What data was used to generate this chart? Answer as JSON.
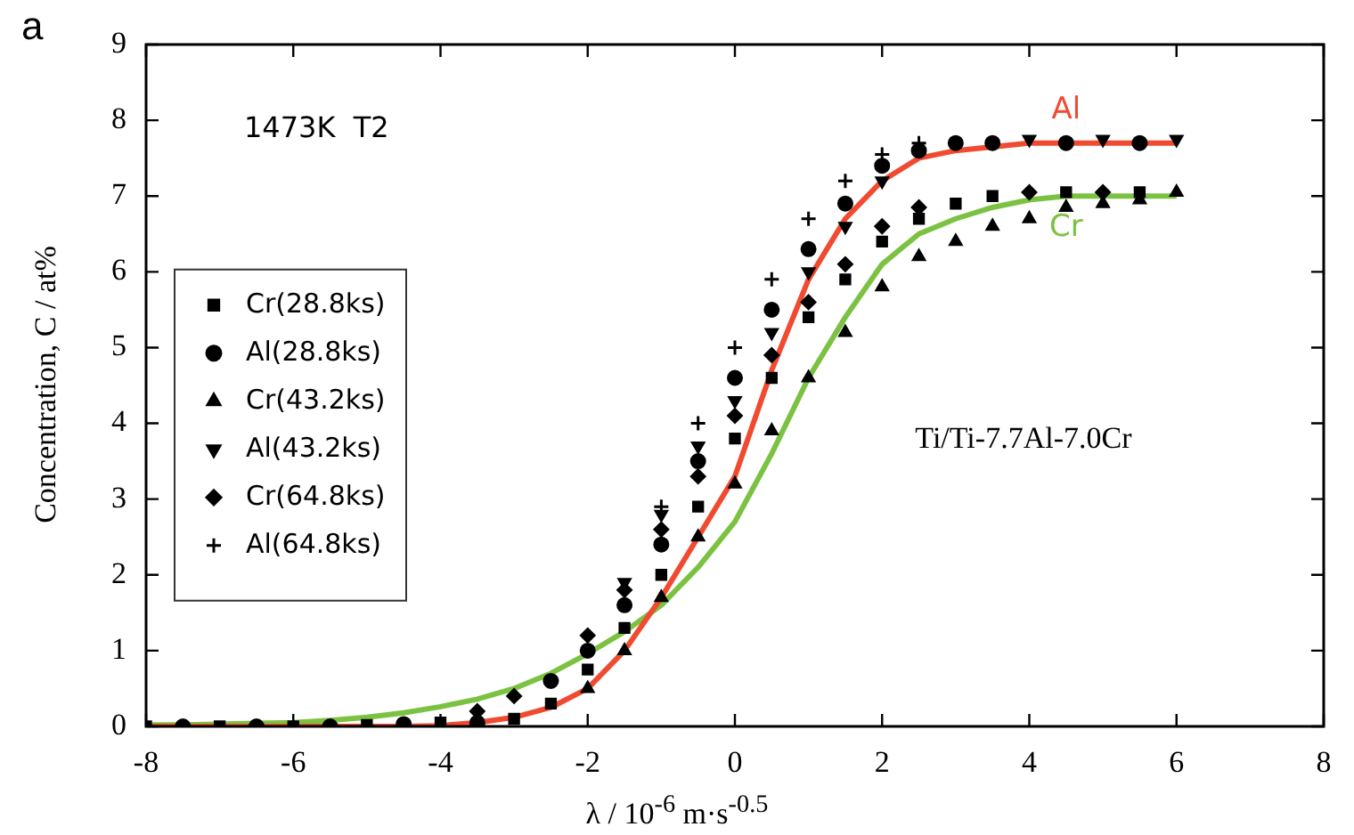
{
  "chart_data": {
    "type": "scatter",
    "title": "a",
    "xlabel": "λ / 10$^{-6}$ m·s$^{-0.5}$",
    "ylabel": "Concentration, C / at%",
    "xlim": [
      -8,
      8
    ],
    "xticks": [
      -8,
      -6,
      -4,
      -2,
      0,
      2,
      4,
      6,
      8
    ],
    "ylim": [
      0,
      9
    ],
    "yticks": [
      0,
      1,
      2,
      3,
      4,
      5,
      6,
      7,
      8,
      9
    ],
    "grid": false,
    "legend": "left",
    "annotations": [
      "1473K  T2",
      "Ti/Ti-7.7Al-7.0Cr"
    ],
    "x": [
      -8,
      -7.5,
      -7,
      -6.5,
      -6,
      -5.5,
      -5,
      -4.5,
      -4,
      -3.5,
      -3,
      -2.5,
      -2,
      -1.5,
      -1,
      -0.5,
      0,
      0.5,
      1,
      1.5,
      2,
      2.5,
      3,
      3.5,
      4,
      4.5,
      5,
      5.5,
      6
    ],
    "series": [
      {
        "name": "Cr(28.8ks)",
        "color": "#000000",
        "marker": "square",
        "values": [
          0,
          null,
          0,
          null,
          0,
          null,
          0.02,
          null,
          0.05,
          null,
          0.1,
          0.3,
          0.75,
          1.3,
          2.0,
          2.9,
          3.8,
          4.6,
          5.4,
          5.9,
          6.4,
          6.7,
          6.9,
          7.0,
          null,
          7.05,
          null,
          7.05,
          null
        ]
      },
      {
        "name": "Al(28.8ks)",
        "color": "#000000",
        "marker": "circle",
        "values": [
          null,
          0,
          null,
          0,
          null,
          0,
          null,
          0.03,
          null,
          0.05,
          null,
          0.6,
          1.0,
          1.6,
          2.4,
          3.5,
          4.6,
          5.5,
          6.3,
          6.9,
          7.4,
          7.6,
          7.7,
          7.7,
          null,
          7.7,
          null,
          7.7,
          null
        ]
      },
      {
        "name": "Cr(43.2ks)",
        "color": "#000000",
        "marker": "triangle",
        "values": [
          null,
          null,
          null,
          null,
          null,
          null,
          null,
          null,
          null,
          null,
          null,
          null,
          0.5,
          1.0,
          1.7,
          2.5,
          3.2,
          3.9,
          4.6,
          5.2,
          5.8,
          6.2,
          6.4,
          6.6,
          6.7,
          6.85,
          6.9,
          6.95,
          7.05
        ]
      },
      {
        "name": "Al(43.2ks)",
        "color": "#000000",
        "marker": "triangle-down",
        "values": [
          null,
          null,
          null,
          null,
          null,
          null,
          null,
          null,
          null,
          null,
          null,
          null,
          null,
          1.9,
          2.8,
          3.7,
          4.3,
          5.2,
          6.0,
          6.6,
          7.2,
          null,
          null,
          null,
          7.75,
          null,
          7.75,
          null,
          7.75
        ]
      },
      {
        "name": "Cr(64.8ks)",
        "color": "#000000",
        "marker": "diamond",
        "values": [
          null,
          null,
          null,
          null,
          null,
          null,
          null,
          null,
          null,
          0.2,
          0.4,
          null,
          1.2,
          1.8,
          2.6,
          3.3,
          4.1,
          4.9,
          5.6,
          6.1,
          6.6,
          6.85,
          null,
          null,
          7.05,
          null,
          7.05,
          null,
          null
        ]
      },
      {
        "name": "Al(64.8ks)",
        "color": "#000000",
        "marker": "cross",
        "values": [
          null,
          null,
          null,
          null,
          null,
          null,
          null,
          null,
          null,
          null,
          null,
          null,
          null,
          null,
          2.9,
          4.0,
          5.0,
          5.9,
          6.7,
          7.2,
          7.55,
          7.7,
          null,
          null,
          null,
          null,
          null,
          null,
          null
        ]
      },
      {
        "name": "Al",
        "type": "line",
        "color": "#f04a30",
        "marker": "none",
        "values": [
          0,
          0,
          0,
          0,
          0,
          0,
          0,
          0,
          0.01,
          0.05,
          0.12,
          0.25,
          0.5,
          1.0,
          1.7,
          2.5,
          3.3,
          4.7,
          5.9,
          6.7,
          7.2,
          7.5,
          7.6,
          7.65,
          7.7,
          7.7,
          7.7,
          7.7,
          7.7
        ]
      },
      {
        "name": "Cr",
        "type": "line",
        "color": "#7cc242",
        "marker": "none",
        "values": [
          0.02,
          0.02,
          0.03,
          0.04,
          0.05,
          0.08,
          0.12,
          0.18,
          0.26,
          0.36,
          0.5,
          0.7,
          0.96,
          1.25,
          1.6,
          2.1,
          2.7,
          3.6,
          4.6,
          5.4,
          6.1,
          6.5,
          6.7,
          6.85,
          6.95,
          7.0,
          7.0,
          7.0,
          7.0
        ]
      }
    ]
  }
}
